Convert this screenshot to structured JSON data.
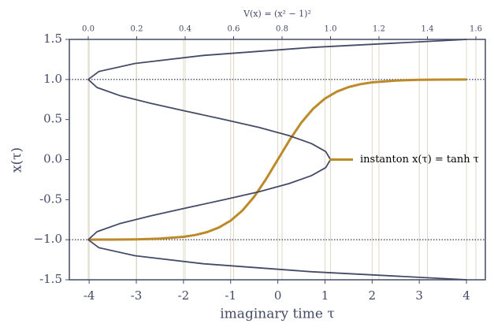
{
  "chart_data": {
    "type": "line",
    "xlabel": "imaginary time τ",
    "ylabel": "x(τ)",
    "x2label": "V(x) = (x² − 1)²",
    "xlim": [
      -4.42,
      4.4
    ],
    "xticks": [
      -4,
      -3,
      -2,
      -1,
      0,
      1,
      2,
      3,
      4
    ],
    "x2lim": [
      -0.078,
      1.639
    ],
    "x2ticks": [
      {
        "value": 0,
        "label": "0.0"
      },
      0.2,
      0.4,
      0.6,
      0.8,
      {
        "value": 1,
        "label": "1.0"
      },
      1.2,
      1.4,
      1.6
    ],
    "ylim": [
      -1.5,
      1.5
    ],
    "yticks": [
      -1.5,
      {
        "value": -1,
        "label": "−1.0"
      },
      -0.5,
      {
        "value": 0,
        "label": "0.0"
      },
      0.5,
      {
        "value": 1,
        "label": "1.0"
      },
      1.5
    ],
    "hlines": [
      -1,
      1
    ],
    "grid": true,
    "legend": "center right",
    "series": [
      {
        "name": "instanton x(τ) = tanh τ",
        "color": "#bd8a2a",
        "x": [
          -4,
          -3.5,
          -3,
          -2.5,
          -2,
          -1.75,
          -1.5,
          -1.25,
          -1,
          -0.75,
          -0.5,
          -0.25,
          0,
          0.25,
          0.5,
          0.75,
          1,
          1.25,
          1.5,
          1.75,
          2,
          2.5,
          3,
          3.5,
          4
        ],
        "values": [
          -0.999,
          -0.998,
          -0.995,
          -0.987,
          -0.964,
          -0.941,
          -0.905,
          -0.848,
          -0.762,
          -0.635,
          -0.462,
          -0.245,
          0,
          0.245,
          0.462,
          0.635,
          0.762,
          0.848,
          0.905,
          0.941,
          0.964,
          0.987,
          0.995,
          0.998,
          0.999
        ]
      },
      {
        "color": "#444b66",
        "axis": "x2",
        "x": [
          1.5625,
          0.9216,
          0.4761,
          0.1936,
          0.0441,
          0,
          0.0361,
          0.1296,
          0.2601,
          0.4096,
          0.5625,
          0.7056,
          0.8281,
          0.9216,
          0.9801,
          1,
          0.9801,
          0.9216,
          0.8281,
          0.7056,
          0.5625,
          0.4096,
          0.2601,
          0.1296,
          0.0361,
          0,
          0.0441,
          0.1936,
          0.4761,
          0.9216,
          1.5625
        ],
        "values": [
          -1.5,
          -1.4,
          -1.3,
          -1.2,
          -1.1,
          -1.0,
          -0.9,
          -0.8,
          -0.7,
          -0.6,
          -0.5,
          -0.4,
          -0.3,
          -0.2,
          -0.1,
          0,
          0.1,
          0.2,
          0.3,
          0.4,
          0.5,
          0.6,
          0.7,
          0.8,
          0.9,
          1.0,
          1.1,
          1.2,
          1.3,
          1.4,
          1.5
        ]
      }
    ]
  }
}
